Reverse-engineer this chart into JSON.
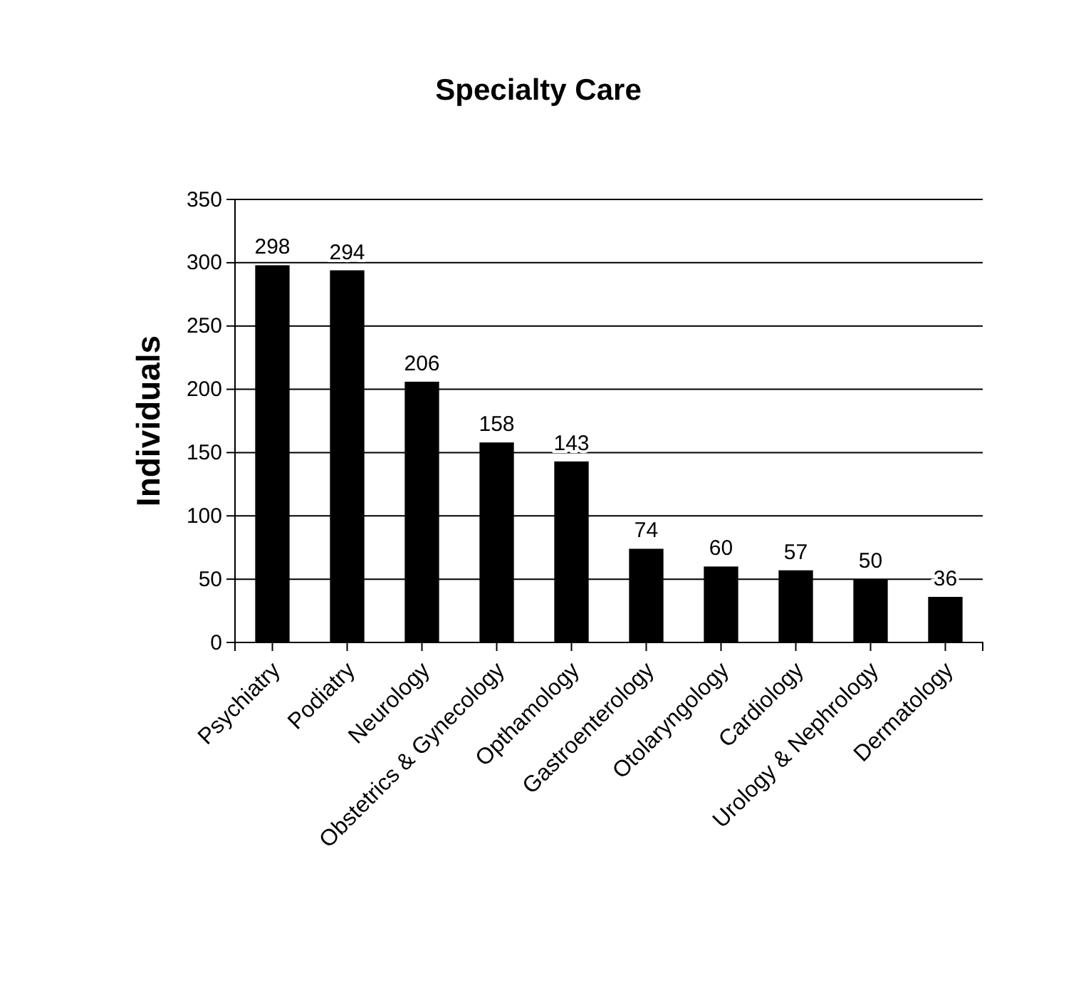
{
  "chart_data": {
    "type": "bar",
    "title": "Specialty Care",
    "ylabel": "Individuals",
    "categories": [
      "Psychiatry",
      "Podiatry",
      "Neurology",
      "Obstetrics & Gynecology",
      "Opthamology",
      "Gastroenterology",
      "Otolaryngology",
      "Cardiology",
      "Urology & Nephrology",
      "Dermatology"
    ],
    "values": [
      298,
      294,
      206,
      158,
      143,
      74,
      60,
      57,
      50,
      36
    ],
    "color": "#000000",
    "ylim": [
      0,
      350
    ],
    "yticks": [
      0,
      50,
      100,
      150,
      200,
      250,
      300,
      350
    ],
    "grid": "y",
    "data_labels": true
  }
}
